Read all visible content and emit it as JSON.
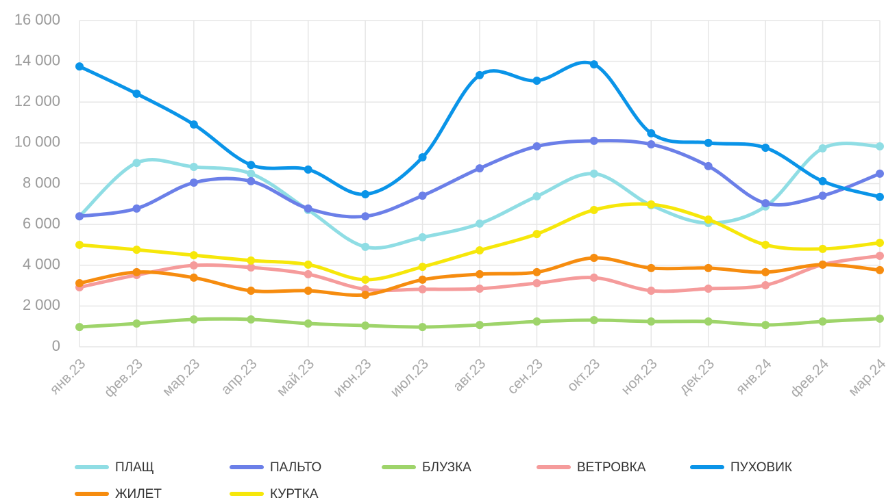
{
  "chart_data": {
    "type": "line",
    "smooth": true,
    "grid": true,
    "legend": "bottom",
    "categories": [
      "янв.23",
      "фев.23",
      "мар.23",
      "апр.23",
      "май.23",
      "июн.23",
      "июл.23",
      "авг.23",
      "сен.23",
      "окт.23",
      "ноя.23",
      "дек.23",
      "янв.24",
      "фев.24",
      "мар.24"
    ],
    "ylim": [
      0,
      16000
    ],
    "yticks": [
      0,
      {
        "value": 2000,
        "label": "2 000"
      },
      {
        "value": 4000,
        "label": "4 000"
      },
      {
        "value": 6000,
        "label": "6 000"
      },
      {
        "value": 8000,
        "label": "8 000"
      },
      {
        "value": 10000,
        "label": "10 000"
      },
      {
        "value": 12000,
        "label": "12 000"
      },
      {
        "value": 14000,
        "label": "14 000"
      },
      {
        "value": 16000,
        "label": "16 000"
      }
    ],
    "series": [
      {
        "name": "ПЛАЩ",
        "color": "#8fdde4",
        "values": [
          6400,
          9020,
          8820,
          8490,
          6710,
          4900,
          5370,
          6040,
          7380,
          8490,
          6940,
          6070,
          6880,
          9730,
          9830
        ]
      },
      {
        "name": "ПАЛЬТО",
        "color": "#6b7fe8",
        "values": [
          6400,
          6780,
          8050,
          8120,
          6780,
          6400,
          7410,
          8750,
          9830,
          10100,
          9930,
          8860,
          7040,
          7410,
          8490
        ]
      },
      {
        "name": "БЛУЗКА",
        "color": "#9ed46a",
        "values": [
          970,
          1140,
          1340,
          1340,
          1140,
          1040,
          970,
          1070,
          1240,
          1310,
          1240,
          1240,
          1070,
          1240,
          1380
        ]
      },
      {
        "name": "ВЕТРОВКА",
        "color": "#f59b9b",
        "values": [
          2920,
          3520,
          3990,
          3890,
          3560,
          2820,
          2820,
          2850,
          3120,
          3390,
          2750,
          2850,
          3020,
          4030,
          4460
        ]
      },
      {
        "name": "ПУХОВИК",
        "color": "#0a94e8",
        "values": [
          13750,
          12410,
          10900,
          8920,
          8690,
          7480,
          9290,
          13320,
          13050,
          13850,
          10470,
          10000,
          9760,
          8120,
          7350
        ]
      },
      {
        "name": "ЖИЛЕТ",
        "color": "#f68c0f",
        "values": [
          3120,
          3660,
          3390,
          2750,
          2750,
          2550,
          3290,
          3560,
          3660,
          4360,
          3860,
          3860,
          3660,
          4030,
          3760
        ]
      },
      {
        "name": "КУРТКА",
        "color": "#f6e70a",
        "values": [
          5000,
          4760,
          4490,
          4230,
          4030,
          3290,
          3920,
          4730,
          5530,
          6710,
          6980,
          6240,
          5000,
          4800,
          5100
        ]
      }
    ]
  }
}
